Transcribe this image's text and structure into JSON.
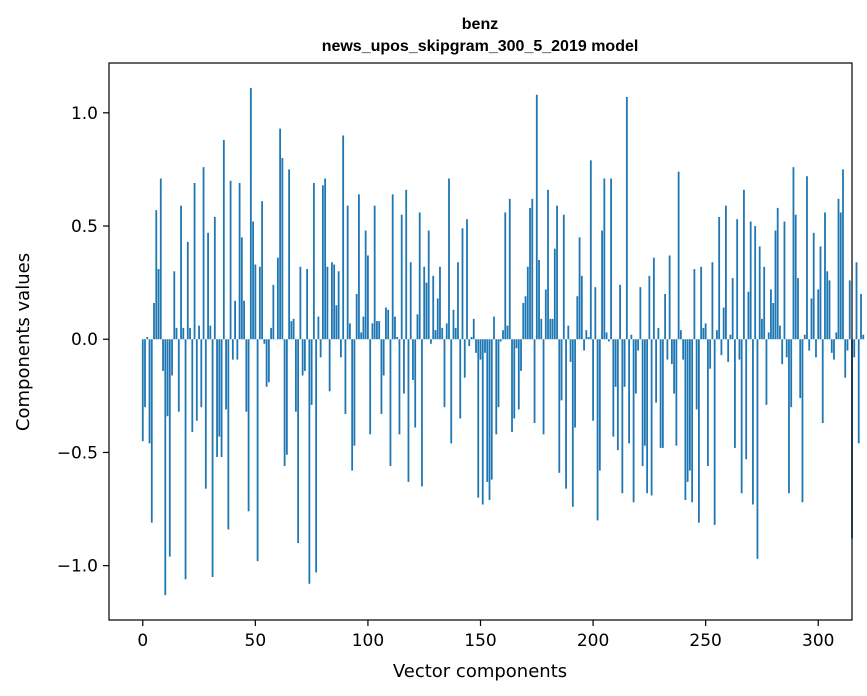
{
  "chart_data": {
    "type": "bar",
    "title": "benz",
    "subtitle": "news_upos_skipgram_300_5_2019 model",
    "xlabel": "Vector components",
    "ylabel": "Components values",
    "xlim": [
      -15,
      315
    ],
    "ylim": [
      -1.24,
      1.22
    ],
    "xticks": [
      0,
      50,
      100,
      150,
      200,
      250,
      300
    ],
    "xtick_labels": [
      "0",
      "50",
      "100",
      "150",
      "200",
      "250",
      "300"
    ],
    "yticks": [
      -1.0,
      -0.5,
      0.0,
      0.5,
      1.0
    ],
    "ytick_labels": [
      "−1.0",
      "−0.5",
      "0.0",
      "0.5",
      "1.0"
    ],
    "bar_color": "#1f77b4",
    "values": [
      -0.45,
      -0.3,
      0.01,
      -0.46,
      -0.81,
      0.16,
      0.57,
      0.31,
      0.71,
      -0.14,
      -1.13,
      -0.34,
      -0.96,
      -0.16,
      0.3,
      0.05,
      -0.32,
      0.59,
      0.05,
      -1.06,
      0.43,
      0.05,
      -0.41,
      0.69,
      -0.36,
      0.06,
      -0.3,
      0.76,
      -0.66,
      0.47,
      0.06,
      -1.05,
      0.54,
      -0.52,
      -0.43,
      -0.52,
      0.88,
      -0.31,
      -0.84,
      0.7,
      -0.09,
      0.17,
      -0.09,
      0.69,
      0.45,
      0.17,
      -0.32,
      -0.76,
      1.11,
      0.52,
      0.33,
      -0.98,
      0.32,
      0.61,
      -0.02,
      -0.21,
      -0.19,
      0.05,
      0.24,
      0.0,
      0.36,
      0.93,
      0.8,
      -0.56,
      -0.51,
      0.75,
      0.08,
      0.09,
      -0.32,
      -0.9,
      0.32,
      -0.16,
      -0.14,
      0.31,
      -1.08,
      -0.29,
      0.69,
      -1.03,
      0.1,
      -0.08,
      0.68,
      0.71,
      0.32,
      -0.23,
      0.34,
      0.33,
      0.15,
      0.3,
      -0.08,
      0.9,
      -0.33,
      0.59,
      0.07,
      -0.58,
      -0.47,
      0.2,
      0.64,
      0.03,
      0.1,
      0.48,
      0.37,
      -0.42,
      0.07,
      0.59,
      0.08,
      0.08,
      -0.33,
      -0.16,
      0.14,
      0.13,
      -0.56,
      0.64,
      0.1,
      0.01,
      -0.42,
      0.55,
      -0.24,
      0.66,
      -0.63,
      0.34,
      -0.18,
      -0.39,
      0.11,
      0.56,
      -0.65,
      0.32,
      0.25,
      0.48,
      -0.02,
      0.28,
      0.04,
      0.18,
      0.32,
      0.05,
      -0.3,
      0.07,
      0.71,
      -0.46,
      0.13,
      0.05,
      0.34,
      -0.35,
      0.49,
      -0.17,
      0.53,
      -0.03,
      0.01,
      0.09,
      -0.06,
      -0.7,
      -0.09,
      -0.73,
      -0.06,
      -0.63,
      -0.71,
      -0.62,
      0.1,
      -0.42,
      -0.3,
      -0.01,
      0.04,
      0.56,
      0.06,
      0.62,
      -0.41,
      -0.35,
      -0.04,
      -0.31,
      -0.14,
      0.16,
      0.19,
      0.32,
      0.58,
      0.62,
      -0.37,
      1.08,
      0.35,
      0.09,
      -0.42,
      0.22,
      0.66,
      0.09,
      0.09,
      0.4,
      0.59,
      -0.59,
      -0.27,
      0.55,
      -0.66,
      0.06,
      -0.1,
      -0.74,
      -0.39,
      0.19,
      0.45,
      0.28,
      -0.05,
      0.04,
      0.01,
      0.79,
      -0.36,
      0.23,
      -0.8,
      -0.58,
      0.48,
      0.71,
      0.03,
      -0.01,
      0.71,
      -0.43,
      -0.21,
      -0.49,
      0.24,
      -0.68,
      -0.21,
      1.07,
      -0.46,
      0.02,
      -0.72,
      -0.24,
      -0.05,
      0.23,
      -0.56,
      -0.47,
      -0.68,
      0.28,
      -0.69,
      0.36,
      -0.28,
      0.05,
      -0.48,
      -0.48,
      0.2,
      -0.09,
      0.37,
      -0.11,
      -0.24,
      -0.47,
      0.74,
      0.04,
      -0.09,
      -0.71,
      -0.63,
      -0.58,
      -0.72,
      0.31,
      -0.31,
      -0.81,
      0.32,
      0.05,
      0.07,
      -0.56,
      -0.13,
      0.34,
      -0.82,
      0.04,
      0.54,
      -0.07,
      0.14,
      0.59,
      -0.1,
      0.02,
      0.27,
      -0.48,
      0.53,
      -0.09,
      -0.68,
      0.66,
      -0.53,
      0.21,
      0.52,
      -0.73,
      0.5,
      -0.97,
      0.41,
      0.09,
      0.32,
      -0.29,
      0.03,
      0.22,
      0.16,
      0.48,
      0.58,
      0.06,
      -0.11,
      0.52,
      -0.08,
      -0.68,
      -0.3,
      0.76,
      0.55,
      0.27,
      -0.26,
      -0.72,
      0.02,
      0.72,
      -0.05,
      0.18,
      0.47,
      -0.08,
      0.22,
      0.41,
      -0.37,
      0.56,
      0.3,
      0.26,
      -0.06,
      -0.09,
      0.03,
      0.62,
      0.56,
      0.75,
      -0.17,
      -0.05,
      0.26,
      -0.88,
      -0.08,
      0.34,
      -0.46,
      0.2,
      0.02
    ]
  }
}
